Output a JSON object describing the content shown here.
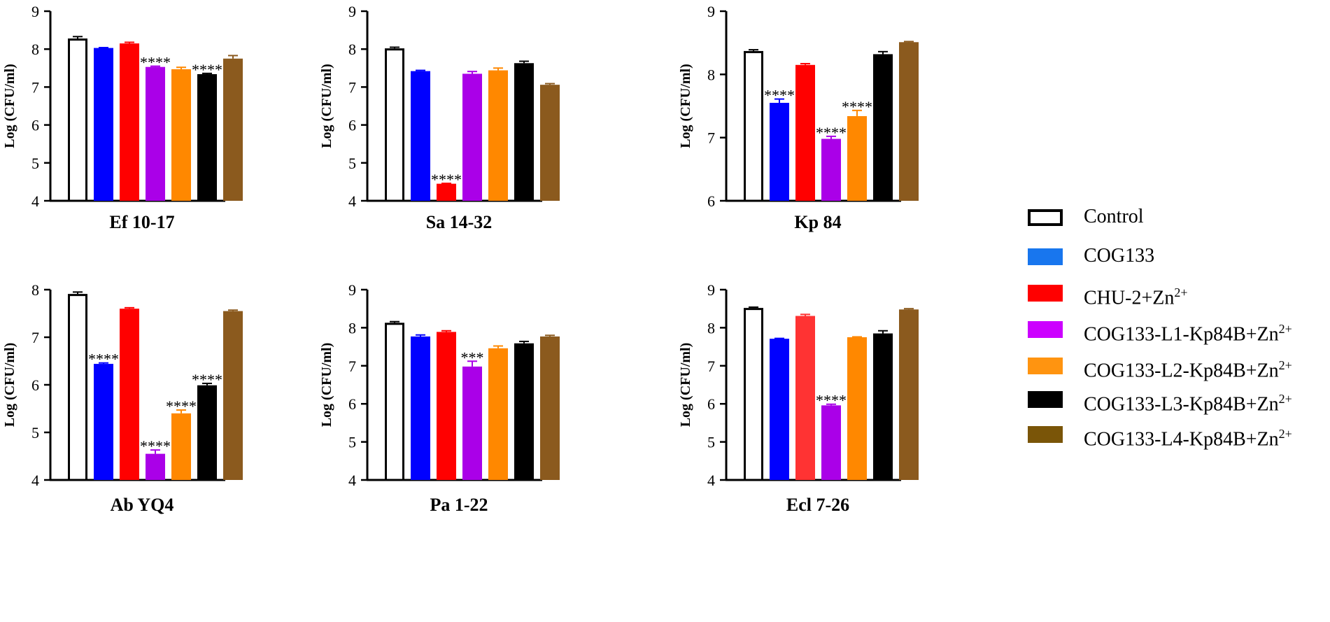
{
  "legend": {
    "items": [
      {
        "name": "Control",
        "base": "Control",
        "sup": "",
        "fill": "#ffffff",
        "stroke": "#000000"
      },
      {
        "name": "COG133",
        "base": "COG133",
        "sup": "",
        "fill": "#1876ee",
        "stroke": "#1876ee"
      },
      {
        "name": "CHU-2+Zn2+",
        "base": "CHU-2+Zn",
        "sup": "2+",
        "fill": "#ff0000",
        "stroke": "#ff0000"
      },
      {
        "name": "COG133-L1-Kp84B+Zn2+",
        "base": "COG133-L1-Kp84B+Zn",
        "sup": "2+",
        "fill": "#cc00ff",
        "stroke": "#cc00ff"
      },
      {
        "name": "COG133-L2-Kp84B+Zn2+",
        "base": "COG133-L2-Kp84B+Zn",
        "sup": "2+",
        "fill": "#ff9410",
        "stroke": "#ff9410"
      },
      {
        "name": "COG133-L3-Kp84B+Zn2+",
        "base": "COG133-L3-Kp84B+Zn",
        "sup": "2+",
        "fill": "#000000",
        "stroke": "#000000"
      },
      {
        "name": "COG133-L4-Kp84B+Zn2+",
        "base": "COG133-L4-Kp84B+Zn",
        "sup": "2+",
        "fill": "#7a5508",
        "stroke": "#7a5508"
      }
    ]
  },
  "chart_data": [
    {
      "type": "bar",
      "title": "Ef 10-17",
      "ylabel": "Log (CFU/ml)",
      "ylim": [
        4,
        9
      ],
      "yticks": [
        4,
        5,
        6,
        7,
        8,
        9
      ],
      "categories": [
        "Control",
        "COG133",
        "CHU-2+Zn2+",
        "COG133-L1-Kp84B+Zn2+",
        "COG133-L2-Kp84B+Zn2+",
        "COG133-L3-Kp84B+Zn2+",
        "COG133-L4-Kp84B+Zn2+"
      ],
      "colors": [
        "#ffffff",
        "#0000ff",
        "#ff0000",
        "#aa00e8",
        "#ff8800",
        "#000000",
        "#8b5a1e"
      ],
      "values": [
        8.28,
        8.03,
        8.15,
        7.53,
        7.47,
        7.34,
        7.75
      ],
      "errors": [
        0.05,
        0.01,
        0.03,
        0.02,
        0.05,
        0.02,
        0.08
      ],
      "significance": [
        "",
        "",
        "",
        "****",
        "",
        "****",
        ""
      ]
    },
    {
      "type": "bar",
      "title": "Sa 14-32",
      "ylabel": "Log (CFU/ml)",
      "ylim": [
        4,
        9
      ],
      "yticks": [
        4,
        5,
        6,
        7,
        8,
        9
      ],
      "categories": [
        "Control",
        "COG133",
        "CHU-2+Zn2+",
        "COG133-L1-Kp84B+Zn2+",
        "COG133-L2-Kp84B+Zn2+",
        "COG133-L3-Kp84B+Zn2+",
        "COG133-L4-Kp84B+Zn2+"
      ],
      "colors": [
        "#ffffff",
        "#0000ff",
        "#ff0000",
        "#aa00e8",
        "#ff8800",
        "#000000",
        "#8b5a1e"
      ],
      "values": [
        8.02,
        7.42,
        4.45,
        7.35,
        7.44,
        7.63,
        7.06
      ],
      "errors": [
        0.03,
        0.02,
        0.01,
        0.06,
        0.06,
        0.05,
        0.03
      ],
      "significance": [
        "",
        "",
        "****",
        "",
        "",
        "",
        ""
      ]
    },
    {
      "type": "bar",
      "title": "Kp 84",
      "ylabel": "Log (CFU/ml)",
      "ylim": [
        6,
        9
      ],
      "yticks": [
        6,
        7,
        8,
        9
      ],
      "categories": [
        "Control",
        "COG133",
        "CHU-2+Zn2+",
        "COG133-L1-Kp84B+Zn2+",
        "COG133-L2-Kp84B+Zn2+",
        "COG133-L3-Kp84B+Zn2+",
        "COG133-L4-Kp84B+Zn2+"
      ],
      "colors": [
        "#ffffff",
        "#0000ff",
        "#ff0000",
        "#aa00e8",
        "#ff8800",
        "#000000",
        "#8b5a1e"
      ],
      "values": [
        8.37,
        7.55,
        8.15,
        6.98,
        7.34,
        8.32,
        8.51
      ],
      "errors": [
        0.02,
        0.06,
        0.02,
        0.04,
        0.09,
        0.04,
        0.01
      ],
      "significance": [
        "",
        "****",
        "",
        "****",
        "****",
        "",
        ""
      ]
    },
    {
      "type": "bar",
      "title": "Ab YQ4",
      "ylabel": "Log (CFU/ml)",
      "ylim": [
        4,
        8
      ],
      "yticks": [
        4,
        5,
        6,
        7,
        8
      ],
      "categories": [
        "Control",
        "COG133",
        "CHU-2+Zn2+",
        "COG133-L1-Kp84B+Zn2+",
        "COG133-L2-Kp84B+Zn2+",
        "COG133-L3-Kp84B+Zn2+",
        "COG133-L4-Kp84B+Zn2+"
      ],
      "colors": [
        "#ffffff",
        "#0000ff",
        "#ff0000",
        "#aa00e8",
        "#ff8800",
        "#000000",
        "#8b5a1e"
      ],
      "values": [
        7.91,
        6.44,
        7.6,
        4.55,
        5.4,
        5.99,
        7.55
      ],
      "errors": [
        0.04,
        0.02,
        0.02,
        0.08,
        0.07,
        0.04,
        0.02
      ],
      "significance": [
        "",
        "****",
        "",
        "****",
        "****",
        "****",
        ""
      ]
    },
    {
      "type": "bar",
      "title": "Pa 1-22",
      "ylabel": "Log (CFU/ml)",
      "ylim": [
        4,
        9
      ],
      "yticks": [
        4,
        5,
        6,
        7,
        8,
        9
      ],
      "categories": [
        "Control",
        "COG133",
        "CHU-2+Zn2+",
        "COG133-L1-Kp84B+Zn2+",
        "COG133-L2-Kp84B+Zn2+",
        "COG133-L3-Kp84B+Zn2+",
        "COG133-L4-Kp84B+Zn2+"
      ],
      "colors": [
        "#ffffff",
        "#0000ff",
        "#ff0000",
        "#aa00e8",
        "#ff8800",
        "#000000",
        "#8b5a1e"
      ],
      "values": [
        8.13,
        7.77,
        7.89,
        6.98,
        7.46,
        7.59,
        7.77
      ],
      "errors": [
        0.03,
        0.04,
        0.03,
        0.14,
        0.06,
        0.05,
        0.03
      ],
      "significance": [
        "",
        "",
        "",
        "***",
        "",
        "",
        ""
      ]
    },
    {
      "type": "bar",
      "title": "Ecl 7-26",
      "ylabel": "Log (CFU/ml)",
      "ylim": [
        4,
        9
      ],
      "yticks": [
        4,
        5,
        6,
        7,
        8,
        9
      ],
      "categories": [
        "Control",
        "COG133",
        "CHU-2+Zn2+",
        "COG133-L1-Kp84B+Zn2+",
        "COG133-L2-Kp84B+Zn2+",
        "COG133-L3-Kp84B+Zn2+",
        "COG133-L4-Kp84B+Zn2+"
      ],
      "colors": [
        "#ffffff",
        "#0000ff",
        "#ff3333",
        "#aa00e8",
        "#ff8800",
        "#000000",
        "#8b5a1e"
      ],
      "values": [
        8.52,
        7.71,
        8.31,
        5.96,
        7.75,
        7.85,
        8.48
      ],
      "errors": [
        0.02,
        0.01,
        0.04,
        0.03,
        0.01,
        0.07,
        0.02
      ],
      "significance": [
        "",
        "",
        "",
        "****",
        "",
        "",
        ""
      ]
    }
  ]
}
